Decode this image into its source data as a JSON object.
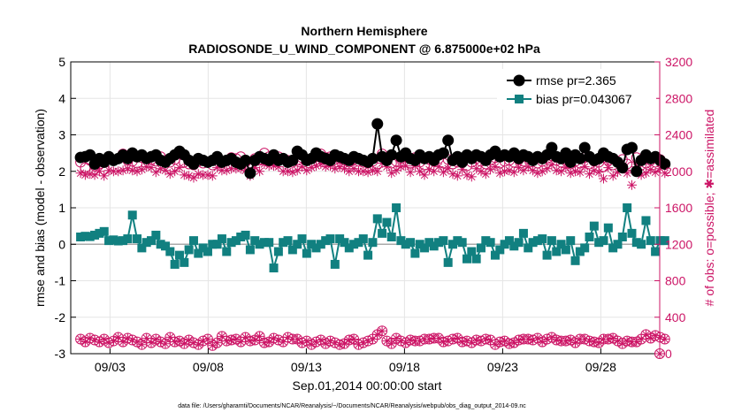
{
  "chart_data": {
    "type": "line",
    "title_line1": "Northern Hemisphere",
    "title_line2": "RADIOSONDE_U_WIND_COMPONENT @ 6.875000e+02 hPa",
    "xlabel": "Sep.01,2014 00:00:00 start",
    "ylabel_left": "rmse and bias (model - observation)",
    "ylabel_right": "# of obs: o=possible; ✱=assimilated",
    "footer": "data file: /Users/gharamti/Documents/NCAR/Reanalysis/~/Documents/NCAR/Reanalysis/webpub/obs_diag_output_2014-09.nc",
    "xlim": [
      1.0,
      31.0
    ],
    "ylim_left": [
      -3,
      5
    ],
    "ylim_right": [
      0,
      3200
    ],
    "x_ticks": [
      3,
      8,
      13,
      18,
      23,
      28
    ],
    "x_tick_labels": [
      "09/03",
      "09/08",
      "09/13",
      "09/18",
      "09/23",
      "09/28"
    ],
    "y_left_ticks": [
      -3,
      -2,
      -1,
      0,
      1,
      2,
      3,
      4,
      5
    ],
    "y_left_tick_labels": [
      "-3",
      "-2",
      "-1",
      "0",
      "1",
      "2",
      "3",
      "4",
      "5"
    ],
    "y_right_ticks": [
      0,
      400,
      800,
      1200,
      1600,
      2000,
      2400,
      2800,
      3200
    ],
    "y_right_tick_labels": [
      "0",
      "400",
      "800",
      "1200",
      "1600",
      "2000",
      "2400",
      "2800",
      "3200"
    ],
    "legend": {
      "placement": "top-right",
      "entries": [
        "rmse pr=2.365",
        "bias pr=0.043067"
      ]
    },
    "colors": {
      "rmse": "#000000",
      "bias": "#118080",
      "obs": "#cc1566",
      "grid": "#e5e5e5",
      "zero": "#aaaaaa"
    },
    "series": [
      {
        "name": "rmse",
        "values": [
          2.38,
          2.4,
          2.45,
          2.2,
          2.35,
          2.25,
          2.4,
          2.3,
          2.35,
          2.45,
          2.35,
          2.5,
          2.4,
          2.45,
          2.35,
          2.4,
          2.45,
          2.3,
          2.25,
          2.35,
          2.45,
          2.55,
          2.45,
          2.3,
          2.2,
          2.35,
          2.3,
          2.25,
          2.3,
          2.4,
          2.25,
          2.3,
          2.35,
          2.25,
          2.2,
          2.3,
          1.95,
          2.3,
          2.4,
          2.35,
          2.3,
          2.45,
          2.3,
          2.35,
          2.25,
          2.3,
          2.55,
          2.45,
          2.3,
          2.35,
          2.5,
          2.4,
          2.35,
          2.3,
          2.45,
          2.4,
          2.35,
          2.3,
          2.4,
          2.35,
          2.3,
          2.25,
          2.35,
          3.3,
          2.4,
          2.3,
          2.45,
          2.85,
          2.4,
          2.5,
          2.35,
          2.3,
          2.45,
          2.35,
          2.4,
          2.3,
          2.45,
          2.5,
          2.85,
          2.3,
          2.4,
          2.25,
          2.45,
          2.35,
          2.45,
          2.4,
          2.3,
          2.45,
          2.55,
          2.4,
          2.45,
          2.4,
          2.5,
          2.35,
          2.45,
          2.4,
          2.3,
          2.4,
          2.35,
          2.45,
          2.65,
          2.4,
          2.35,
          2.5,
          2.25,
          2.45,
          2.35,
          2.65,
          2.4,
          2.3,
          2.35,
          2.5,
          2.4,
          2.35,
          2.25,
          2.1,
          2.6,
          2.65,
          2.0,
          2.3,
          2.45,
          2.35,
          2.4,
          2.3,
          2.2
        ]
      },
      {
        "name": "bias",
        "values": [
          0.2,
          0.22,
          0.21,
          0.25,
          0.3,
          0.35,
          0.1,
          0.12,
          0.09,
          0.1,
          0.15,
          0.8,
          0.15,
          -0.1,
          0.05,
          0.1,
          0.25,
          0.0,
          -0.05,
          -0.2,
          -0.55,
          -0.3,
          -0.5,
          -0.15,
          0.1,
          -0.25,
          -0.1,
          -0.2,
          0.0,
          0.0,
          0.15,
          -0.2,
          0.05,
          0.1,
          0.2,
          0.25,
          -0.15,
          0.1,
          0.0,
          0.05,
          0.05,
          -0.65,
          -0.2,
          0.05,
          0.1,
          -0.15,
          0.0,
          0.15,
          -0.25,
          0.0,
          -0.1,
          0.0,
          0.1,
          0.15,
          -0.55,
          0.15,
          0.05,
          -0.1,
          0.0,
          0.05,
          0.15,
          -0.3,
          0.05,
          0.7,
          0.3,
          0.6,
          0.2,
          1.0,
          0.1,
          0.0,
          0.05,
          -0.25,
          0.0,
          -0.1,
          0.05,
          -0.05,
          0.05,
          0.1,
          -0.5,
          0.0,
          0.1,
          0.05,
          -0.4,
          -0.2,
          -0.4,
          -0.1,
          0.1,
          0.05,
          -0.3,
          -0.15,
          0.0,
          0.1,
          -0.05,
          0.05,
          0.3,
          -0.1,
          0.05,
          0.1,
          0.15,
          -0.3,
          0.1,
          -0.2,
          0.0,
          -0.15,
          0.1,
          -0.45,
          -0.2,
          -0.1,
          0.2,
          0.5,
          0.05,
          0.1,
          0.45,
          -0.1,
          0.0,
          0.2,
          1.0,
          0.3,
          0.05,
          0.0,
          0.65,
          0.1,
          -0.2,
          0.1,
          0.1
        ]
      },
      {
        "name": "possible",
        "values": [
          2100,
          2040,
          2120,
          2060,
          2080,
          2020,
          2160,
          2120,
          2140,
          2190,
          2120,
          2110,
          2090,
          2150,
          2140,
          2130,
          2110,
          2160,
          2120,
          2100,
          2130,
          2200,
          2100,
          2080,
          2070,
          2110,
          2090,
          2100,
          2070,
          2150,
          2110,
          2120,
          2150,
          2140,
          2160,
          2100,
          2050,
          2140,
          2120,
          2200,
          2160,
          2180,
          2160,
          2130,
          2120,
          2100,
          2120,
          2150,
          2130,
          2140,
          2160,
          2190,
          2150,
          2160,
          2130,
          2140,
          2120,
          2100,
          2130,
          2110,
          2100,
          2090,
          2110,
          2080,
          2190,
          2130,
          2090,
          2110,
          2140,
          2160,
          2090,
          2150,
          2100,
          2070,
          2130,
          2110,
          2140,
          2090,
          2130,
          2080,
          2100,
          2120,
          2060,
          2100,
          2140,
          2110,
          2080,
          2120,
          2150,
          2090,
          2110,
          2120,
          2100,
          2130,
          2110,
          2140,
          2120,
          2090,
          2110,
          2140,
          2170,
          2120,
          2100,
          2130,
          2080,
          2110,
          2090,
          2150,
          2080,
          2110,
          2100,
          2050,
          2120,
          2070,
          2100,
          2130,
          2080,
          2050,
          2150,
          2070,
          2090,
          2120,
          2100,
          2130,
          2080
        ]
      },
      {
        "name": "assimilated",
        "values": [
          1980,
          1960,
          1970,
          1960,
          2000,
          1950,
          2010,
          2000,
          2000,
          2010,
          2030,
          2010,
          2000,
          2020,
          2050,
          2040,
          1990,
          2030,
          2010,
          1970,
          2000,
          2040,
          1960,
          1950,
          1930,
          1970,
          1960,
          1960,
          1950,
          2040,
          2010,
          2010,
          2030,
          2030,
          2030,
          2010,
          1950,
          2040,
          2000,
          2080,
          2060,
          2060,
          2050,
          2000,
          2000,
          1990,
          2010,
          2050,
          2010,
          2040,
          2060,
          2080,
          2050,
          2060,
          2030,
          2050,
          2030,
          2000,
          2030,
          2000,
          2000,
          1990,
          2010,
          2000,
          2090,
          2050,
          1980,
          2010,
          2050,
          2060,
          1990,
          2060,
          2000,
          1960,
          2020,
          2000,
          2050,
          1990,
          2030,
          1970,
          1950,
          2020,
          1960,
          1940,
          2030,
          2000,
          1970,
          2020,
          2050,
          1980,
          2000,
          2010,
          1990,
          2040,
          2010,
          2050,
          2010,
          1980,
          2000,
          2030,
          2070,
          2010,
          2000,
          2040,
          1980,
          2000,
          1990,
          2050,
          1970,
          2010,
          1990,
          1920,
          2040,
          1950,
          1990,
          2030,
          1980,
          1850,
          2050,
          1960,
          1980,
          2020,
          1990,
          2030,
          1980
        ]
      },
      {
        "name": "obs_count_low",
        "values": [
          160,
          130,
          170,
          150,
          130,
          160,
          120,
          140,
          180,
          130,
          170,
          150,
          130,
          100,
          170,
          120,
          160,
          130,
          110,
          180,
          130,
          140,
          110,
          150,
          120,
          100,
          140,
          160,
          90,
          120,
          190,
          140,
          150,
          160,
          130,
          180,
          140,
          150,
          190,
          120,
          130,
          170,
          150,
          130,
          180,
          160,
          160,
          120,
          140,
          100,
          130,
          150,
          110,
          140,
          120,
          100,
          110,
          150,
          160,
          100,
          120,
          140,
          160,
          210,
          250,
          140,
          110,
          170,
          140,
          120,
          150,
          140,
          140,
          160,
          160,
          170,
          170,
          130,
          140,
          160,
          170,
          130,
          140,
          120,
          150,
          140,
          160,
          150,
          100,
          130,
          140,
          110,
          120,
          150,
          160,
          160,
          150,
          170,
          130,
          160,
          180,
          150,
          140,
          140,
          150,
          120,
          160,
          160,
          140,
          130,
          120,
          160,
          160,
          170,
          140,
          110,
          140,
          130,
          130,
          160,
          210,
          170,
          200,
          180,
          160
        ]
      }
    ],
    "last_point_right": 0
  }
}
